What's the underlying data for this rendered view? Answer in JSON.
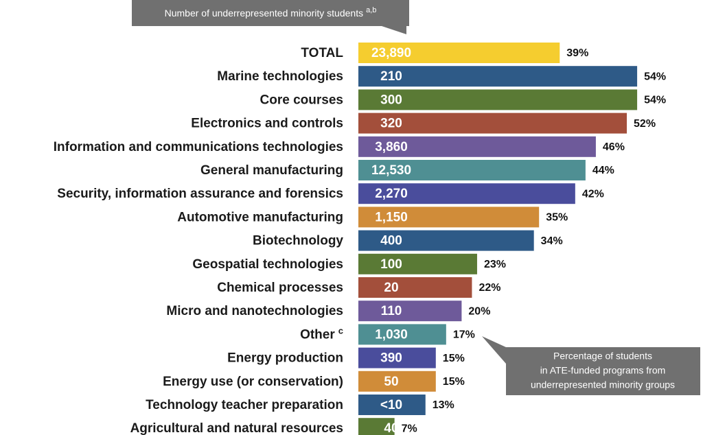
{
  "chart_data": {
    "type": "bar",
    "orientation": "horizontal",
    "categories": [
      "TOTAL",
      "Marine technologies",
      "Core courses",
      "Electronics and controls",
      "Information and communications technologies",
      "General manufacturing",
      "Security, information assurance and forensics",
      "Automotive manufacturing",
      "Biotechnology",
      "Geospatial technologies",
      "Chemical processes",
      "Micro and nanotechnologies",
      "Other",
      "Energy production",
      "Energy use (or conservation)",
      "Technology teacher preparation",
      "Agricultural and natural resources"
    ],
    "category_sups": [
      null,
      null,
      null,
      null,
      null,
      null,
      null,
      null,
      null,
      null,
      null,
      null,
      "c",
      null,
      null,
      null,
      null
    ],
    "values": [
      39,
      54,
      54,
      52,
      46,
      44,
      42,
      35,
      34,
      23,
      22,
      20,
      17,
      15,
      15,
      13,
      7
    ],
    "value_labels": [
      "39%",
      "54%",
      "54%",
      "52%",
      "46%",
      "44%",
      "42%",
      "35%",
      "34%",
      "23%",
      "22%",
      "20%",
      "17%",
      "15%",
      "15%",
      "13%",
      "7%"
    ],
    "count_labels": [
      "23,890",
      "210",
      "300",
      "320",
      "3,860",
      "12,530",
      "2,270",
      "1,150",
      "400",
      "100",
      "20",
      "110",
      "1,030",
      "390",
      "50",
      "<10",
      "40"
    ],
    "colors": [
      "#f5cd2f",
      "#2e5a87",
      "#5a7a35",
      "#a34f3b",
      "#6e5a9a",
      "#4f8f93",
      "#4a4d9c",
      "#d08c39",
      "#2e5a87",
      "#5a7a35",
      "#a34f3b",
      "#6e5a9a",
      "#4f8f93",
      "#4a4d9c",
      "#d08c39",
      "#2e5a87",
      "#5a7a35"
    ],
    "annotations": [
      {
        "lines": [
          "Number of underrepresented minority students"
        ],
        "sup": "a,b"
      },
      {
        "lines": [
          "Percentage of students",
          "in ATE-funded programs from",
          "underrepresented minority groups"
        ]
      }
    ]
  }
}
